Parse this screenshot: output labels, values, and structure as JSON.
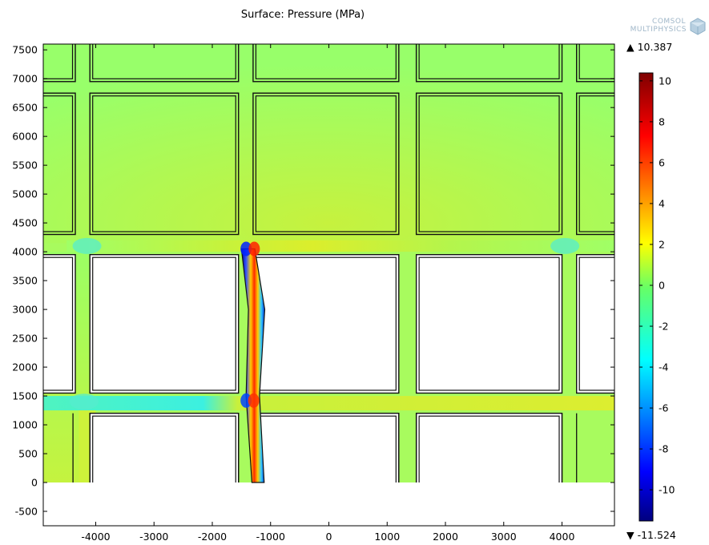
{
  "chart_data": {
    "type": "heatmap",
    "title": "Surface: Pressure (MPa)",
    "xlabel": "",
    "ylabel": "",
    "xlim": [
      -4900,
      4900
    ],
    "ylim": [
      -750,
      7600
    ],
    "x_ticks": [
      -4000,
      -3000,
      -2000,
      -1000,
      0,
      1000,
      2000,
      3000,
      4000
    ],
    "y_ticks": [
      -500,
      0,
      500,
      1000,
      1500,
      2000,
      2500,
      3000,
      3500,
      4000,
      4500,
      5000,
      5500,
      6000,
      6500,
      7000,
      7500
    ],
    "colorbar": {
      "min": -11.524,
      "max": 10.387,
      "max_label": "10.387",
      "min_label": "-11.524",
      "ticks": [
        10,
        8,
        6,
        4,
        2,
        0,
        -2,
        -4,
        -6,
        -8,
        -10
      ],
      "colormap": "rainbow (dark blue → cyan → green → yellow → red → dark red)"
    },
    "features": {
      "ambient_pressure_MPa": 0.5,
      "upper_blocks_pressure_MPa": 0.5,
      "center_bottom_pressure_MPa": 1.5,
      "horizontal_channel_y_range": [
        1250,
        1500
      ],
      "horizontal_channel_left_pressure_MPa": -3.5,
      "horizontal_channel_right_pressure_MPa": 1.5,
      "fracture_x_range": [
        -1500,
        -1150
      ],
      "fracture_y_range": [
        0,
        4000
      ],
      "fracture_peak_positive_MPa": 10.387,
      "fracture_peak_negative_MPa": -11.524
    }
  },
  "logo": {
    "line1": "COMSOL",
    "line2": "MULTIPHYSICS"
  }
}
